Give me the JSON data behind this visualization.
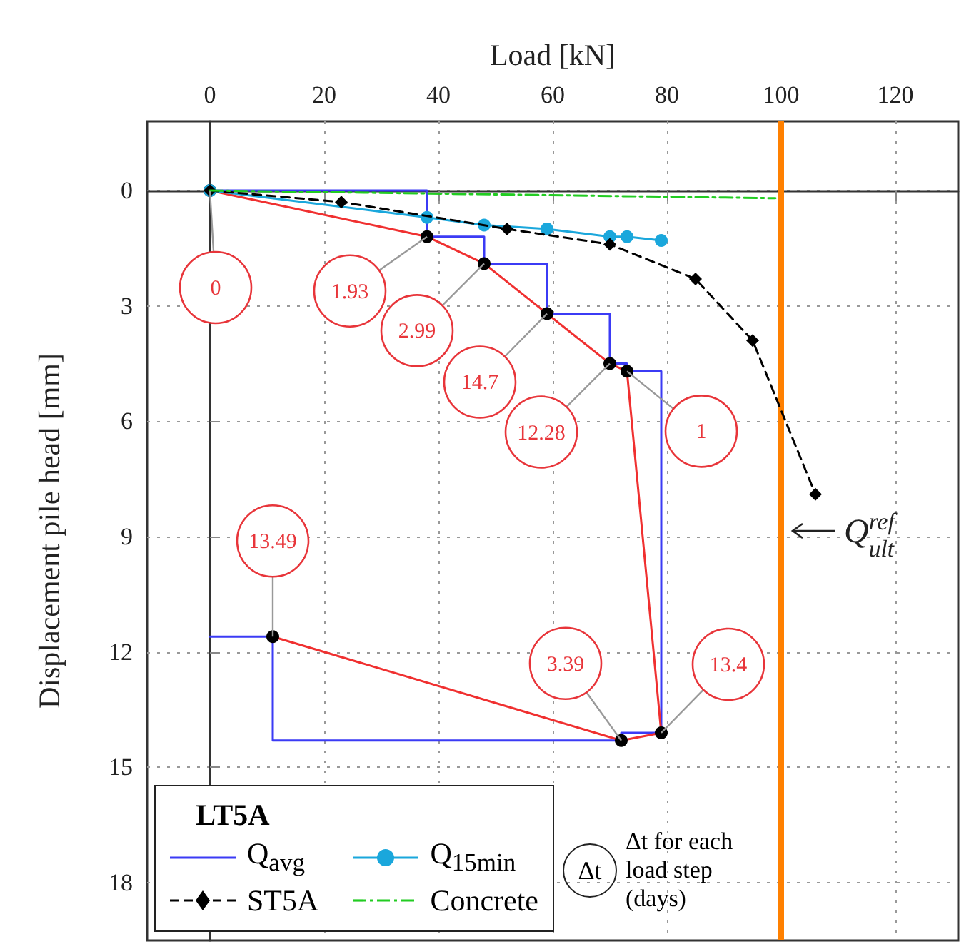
{
  "chart_data": {
    "type": "line",
    "xlabel": "Load [kN]",
    "ylabel": "Displacement pile head [mm]",
    "legend_title": "LT5A",
    "xlim": [
      -11,
      131
    ],
    "xticks": [
      0,
      20,
      40,
      60,
      80,
      100,
      120
    ],
    "ylim": [
      19.5,
      -1.8
    ],
    "yticks": [
      0,
      3,
      6,
      9,
      12,
      15,
      18
    ],
    "grid": true,
    "legend": "bottom left",
    "series": [
      {
        "name": "Q$_{avg}$",
        "color": "#3b3bf5",
        "marker": "none",
        "line_style": "solid",
        "x": [
          0,
          38,
          38,
          48,
          48,
          59,
          59,
          70,
          70,
          73,
          73,
          79,
          79,
          72,
          72,
          11,
          11,
          0
        ],
        "values": [
          0,
          0,
          1.2,
          1.2,
          1.9,
          1.9,
          3.2,
          3.2,
          4.5,
          4.5,
          4.7,
          4.7,
          14.1,
          14.1,
          14.3,
          14.3,
          11.6,
          11.6
        ]
      },
      {
        "color": "#f03030",
        "marker": "circle",
        "line_style": "solid",
        "colors": [
          "#000000",
          "#000000",
          "#000000",
          "#000000",
          "#000000",
          "#000000",
          "#000000",
          "#000000",
          "#000000"
        ],
        "x": [
          0,
          38,
          48,
          59,
          70,
          73,
          79,
          72,
          11
        ],
        "values": [
          0,
          1.2,
          1.9,
          3.2,
          4.5,
          4.7,
          14.1,
          14.3,
          11.6
        ]
      },
      {
        "name": "Q$_{15min}$",
        "color": "#1aa7dc",
        "marker": "circle",
        "line_style": "solid",
        "x": [
          0,
          38,
          48,
          59,
          70,
          73,
          79
        ],
        "values": [
          0,
          0.7,
          0.9,
          1.0,
          1.2,
          1.2,
          1.3
        ]
      },
      {
        "name": "ST5A",
        "color": "#000000",
        "marker": "diamond",
        "line_style": "dashed",
        "x": [
          0,
          23,
          52,
          70,
          85,
          95,
          106
        ],
        "values": [
          0,
          0.3,
          1.0,
          1.4,
          2.3,
          3.9,
          7.9
        ]
      },
      {
        "name": "Concrete",
        "color": "#22cc22",
        "marker": "none",
        "line_style": "dashdot",
        "x": [
          0,
          99
        ],
        "values": [
          0,
          0.2
        ]
      }
    ],
    "ref_lines": [
      {
        "axis": "x",
        "value": 100,
        "label": "Q$^{ref}$$_{ult}$",
        "color": "#ff8000"
      }
    ],
    "annotations": [
      {
        "text": "0",
        "x": 0,
        "y": 0
      },
      {
        "text": "1.93",
        "x": 38,
        "y": 1.2
      },
      {
        "text": "2.99",
        "x": 48,
        "y": 1.9
      },
      {
        "text": "14.7",
        "x": 59,
        "y": 3.2
      },
      {
        "text": "12.28",
        "x": 70,
        "y": 4.5
      },
      {
        "text": "1",
        "x": 73,
        "y": 4.7
      },
      {
        "text": "13.4",
        "x": 79,
        "y": 14.1
      },
      {
        "text": "3.39",
        "x": 72,
        "y": 14.3
      },
      {
        "text": "13.49",
        "x": 11,
        "y": 11.6
      },
      "Δt",
      "Δt for each load step (days)"
    ]
  }
}
